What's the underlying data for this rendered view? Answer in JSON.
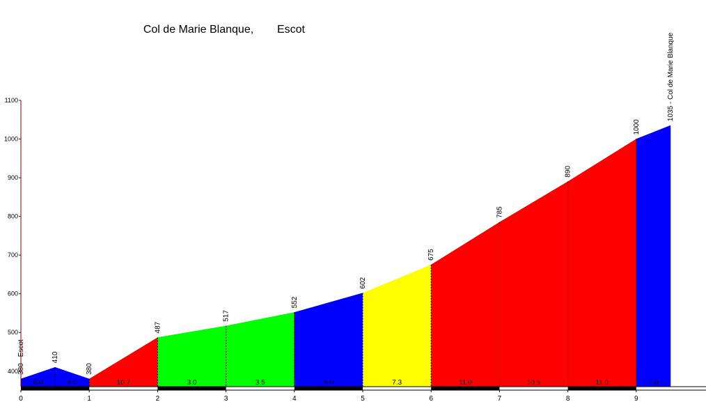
{
  "chart_data": {
    "type": "profile",
    "title": "Col de Marie Blanque,",
    "subtitle": "Escot",
    "x": [
      0,
      0.5,
      1,
      2,
      3,
      4,
      5,
      6,
      7,
      8,
      9,
      9.5
    ],
    "values": [
      380,
      410,
      380,
      487,
      517,
      552,
      602,
      675,
      785,
      890,
      1000,
      1035
    ],
    "value_labels": [
      "380 - Escot",
      "410",
      "380",
      "487",
      "517",
      "552",
      "602",
      "675",
      "785",
      "890",
      "1000",
      "1035 - Col de Marie Blanque"
    ],
    "gradient_labels": [
      "6.0",
      "6.0",
      "10.7",
      "3.0",
      "3.5",
      "5.0",
      "7.3",
      "11.0",
      "10.5",
      "11.0",
      "7.0"
    ],
    "colors": [
      "#0000ff",
      "#0000ff",
      "#ff0000",
      "#00ff00",
      "#00ff00",
      "#0000ff",
      "#ffff00",
      "#ff0000",
      "#ff0000",
      "#ff0000",
      "#0000ff"
    ],
    "xlim": [
      0,
      10
    ],
    "ylim": [
      360,
      1100
    ],
    "xticks": [
      0,
      1,
      2,
      3,
      4,
      5,
      6,
      7,
      8,
      9
    ],
    "yticks": [
      400,
      500,
      600,
      700,
      800,
      900,
      1000,
      1100
    ]
  }
}
